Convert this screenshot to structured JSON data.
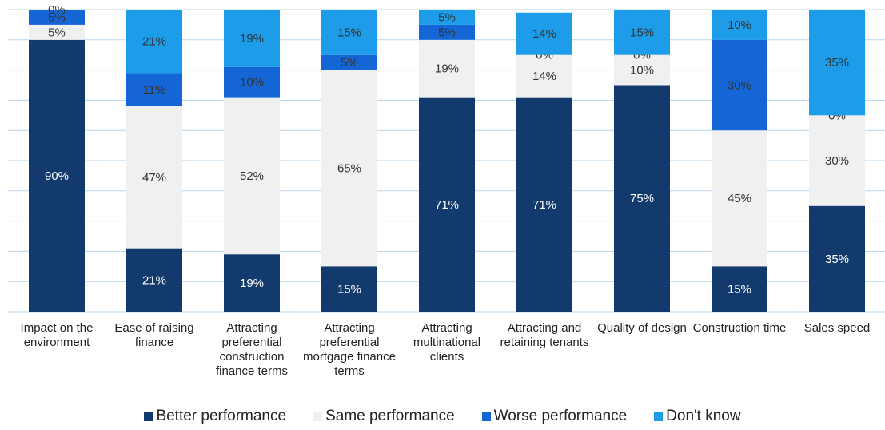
{
  "chart_data": {
    "type": "stacked_bar",
    "categories": [
      "Impact on the environment",
      "Ease of raising finance",
      "Attracting preferential construction finance terms",
      "Attracting preferential mortgage finance terms",
      "Attracting multinational clients",
      "Attracting and retaining tenants",
      "Quality of design",
      "Construction time",
      "Sales speed"
    ],
    "series": [
      {
        "name": "Better performance",
        "color": "#123a6c",
        "values": [
          90,
          21,
          19,
          15,
          71,
          71,
          75,
          15,
          35
        ],
        "value_labels": [
          "90%",
          "21%",
          "19%",
          "15%",
          "71%",
          "71%",
          "75%",
          "15%",
          "35%"
        ]
      },
      {
        "name": "Same performance",
        "color": "#f0f0f0",
        "values": [
          5,
          47,
          52,
          65,
          19,
          14,
          10,
          45,
          30
        ],
        "value_labels": [
          "5%",
          "47%",
          "52%",
          "65%",
          "19%",
          "14%",
          "10%",
          "45%",
          "30%"
        ]
      },
      {
        "name": "Worse performance",
        "color": "#1466d6",
        "values": [
          5,
          11,
          10,
          5,
          5,
          0,
          0,
          30,
          0
        ],
        "value_labels": [
          "5%",
          "11%",
          "10%",
          "5%",
          "5%",
          "0%",
          "0%",
          "30%",
          "0%"
        ]
      },
      {
        "name": "Don't know",
        "color": "#1c9ce9",
        "values": [
          0,
          21,
          19,
          15,
          5,
          14,
          15,
          10,
          35
        ],
        "value_labels": [
          "0%",
          "21%",
          "19%",
          "15%",
          "5%",
          "14%",
          "15%",
          "10%",
          "35%"
        ]
      }
    ],
    "ylim": [
      0,
      100
    ],
    "yticks": [
      0,
      10,
      20,
      30,
      40,
      50,
      60,
      70,
      80,
      90,
      100
    ],
    "grid": true,
    "legend": "bottom"
  }
}
